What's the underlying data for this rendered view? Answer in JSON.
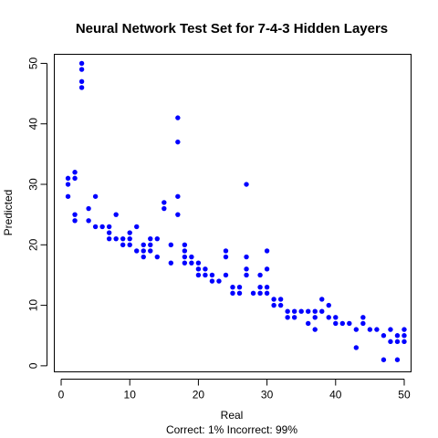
{
  "chart_data": {
    "type": "scatter",
    "title": "Neural Network Test Set for 7-4-3 Hidden Layers",
    "xlabel": "Real",
    "ylabel": "Predicted",
    "subtitle": "Correct: 1% Incorrect: 99%",
    "xlim": [
      -1,
      51
    ],
    "ylim": [
      -1,
      51.5
    ],
    "xticks": [
      0,
      10,
      20,
      30,
      40,
      50
    ],
    "yticks": [
      0,
      10,
      20,
      30,
      40,
      50
    ],
    "grid": false,
    "point_color": "#0000ff",
    "series": [
      {
        "points": [
          [
            1,
            28
          ],
          [
            1,
            30
          ],
          [
            1,
            31
          ],
          [
            2,
            31
          ],
          [
            2,
            32
          ],
          [
            2,
            24
          ],
          [
            2,
            25
          ],
          [
            3,
            46
          ],
          [
            3,
            47
          ],
          [
            3,
            49
          ],
          [
            3,
            50
          ],
          [
            4,
            24
          ],
          [
            4,
            26
          ],
          [
            5,
            23
          ],
          [
            5,
            28
          ],
          [
            6,
            23
          ],
          [
            7,
            21
          ],
          [
            7,
            22
          ],
          [
            7,
            23
          ],
          [
            8,
            21
          ],
          [
            8,
            25
          ],
          [
            9,
            20
          ],
          [
            9,
            21
          ],
          [
            10,
            20
          ],
          [
            10,
            21
          ],
          [
            10,
            22
          ],
          [
            11,
            19
          ],
          [
            11,
            23
          ],
          [
            12,
            18
          ],
          [
            12,
            19
          ],
          [
            12,
            20
          ],
          [
            13,
            19
          ],
          [
            13,
            20
          ],
          [
            13,
            21
          ],
          [
            14,
            18
          ],
          [
            14,
            21
          ],
          [
            15,
            26
          ],
          [
            15,
            27
          ],
          [
            16,
            17
          ],
          [
            16,
            20
          ],
          [
            17,
            25
          ],
          [
            17,
            28
          ],
          [
            17,
            37
          ],
          [
            17,
            41
          ],
          [
            18,
            17
          ],
          [
            18,
            18
          ],
          [
            18,
            19
          ],
          [
            18,
            20
          ],
          [
            19,
            17
          ],
          [
            19,
            18
          ],
          [
            20,
            15
          ],
          [
            20,
            16
          ],
          [
            20,
            17
          ],
          [
            21,
            15
          ],
          [
            21,
            16
          ],
          [
            22,
            14
          ],
          [
            22,
            15
          ],
          [
            23,
            14
          ],
          [
            24,
            15
          ],
          [
            24,
            18
          ],
          [
            24,
            19
          ],
          [
            25,
            12
          ],
          [
            25,
            13
          ],
          [
            26,
            12
          ],
          [
            26,
            13
          ],
          [
            27,
            15
          ],
          [
            27,
            16
          ],
          [
            27,
            18
          ],
          [
            27,
            30
          ],
          [
            28,
            12
          ],
          [
            29,
            12
          ],
          [
            29,
            13
          ],
          [
            29,
            15
          ],
          [
            30,
            12
          ],
          [
            30,
            13
          ],
          [
            30,
            16
          ],
          [
            30,
            19
          ],
          [
            31,
            10
          ],
          [
            31,
            11
          ],
          [
            32,
            10
          ],
          [
            32,
            11
          ],
          [
            33,
            8
          ],
          [
            33,
            9
          ],
          [
            34,
            8
          ],
          [
            34,
            9
          ],
          [
            35,
            9
          ],
          [
            36,
            7
          ],
          [
            36,
            9
          ],
          [
            37,
            6
          ],
          [
            37,
            8
          ],
          [
            37,
            9
          ],
          [
            38,
            9
          ],
          [
            38,
            11
          ],
          [
            39,
            8
          ],
          [
            39,
            10
          ],
          [
            40,
            7
          ],
          [
            40,
            8
          ],
          [
            41,
            7
          ],
          [
            42,
            7
          ],
          [
            43,
            3
          ],
          [
            43,
            6
          ],
          [
            44,
            7
          ],
          [
            44,
            8
          ],
          [
            45,
            6
          ],
          [
            46,
            6
          ],
          [
            47,
            1
          ],
          [
            47,
            5
          ],
          [
            48,
            4
          ],
          [
            48,
            6
          ],
          [
            49,
            1
          ],
          [
            49,
            4
          ],
          [
            49,
            5
          ],
          [
            50,
            4
          ],
          [
            50,
            5
          ],
          [
            50,
            6
          ]
        ]
      }
    ]
  }
}
